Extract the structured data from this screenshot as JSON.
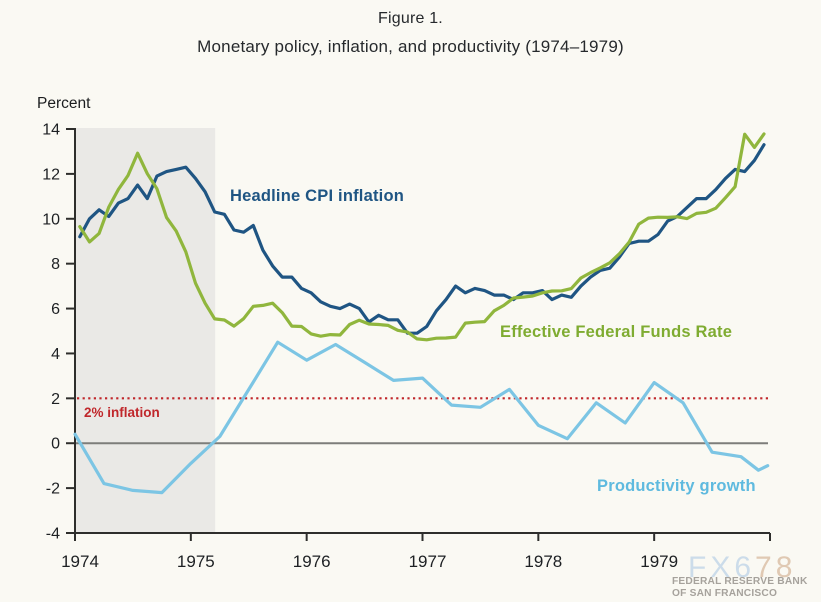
{
  "figure": {
    "title": "Figure 1.",
    "subtitle": "Monetary policy, inflation, and productivity (1974–1979)",
    "y_axis_unit_label": "Percent"
  },
  "annotations": {
    "inflation_target_label": "2% inflation"
  },
  "watermark": {
    "brand_part1": "FX6",
    "brand_part2": "78",
    "org_line1": "FEDERAL RESERVE BANK",
    "org_line2": "OF SAN FRANCISCO"
  },
  "colors": {
    "cpi_line": "#1f5583",
    "ffr_line": "#90b63d",
    "productivity_line": "#7cc5e4",
    "reference_red": "#c0272b",
    "axis": "#2e2e2c",
    "zero_line": "#7d7d7a",
    "recession_band": "#eae9e6",
    "background": "#faf9f3"
  },
  "chart_data": {
    "type": "line",
    "title": "Figure 1.",
    "subtitle": "Monetary policy, inflation, and productivity (1974–1979)",
    "xlabel": "",
    "ylabel": "Percent",
    "xlim": [
      1974,
      1980
    ],
    "ylim": [
      -4,
      14
    ],
    "x_ticks": [
      1974,
      1975,
      1976,
      1977,
      1978,
      1979
    ],
    "y_ticks": [
      14,
      12,
      10,
      8,
      6,
      4,
      2,
      0,
      -2,
      -4
    ],
    "grid": false,
    "legend_position": "inline-labels",
    "recession_band": {
      "start": 1974.0,
      "end": 1975.21
    },
    "zero_line": true,
    "reference_line": {
      "value": 2,
      "label": "2% inflation",
      "style": "dotted",
      "color": "#c0272b"
    },
    "series": [
      {
        "id": "cpi",
        "name": "Headline CPI inflation",
        "color": "#1f5583",
        "label_color": "#1f5583",
        "frequency": "monthly",
        "start": "1974-01",
        "values": [
          9.2,
          10.0,
          10.4,
          10.1,
          10.7,
          10.9,
          11.5,
          10.9,
          11.9,
          12.1,
          12.2,
          12.3,
          11.8,
          11.2,
          10.3,
          10.2,
          9.5,
          9.4,
          9.7,
          8.6,
          7.9,
          7.4,
          7.4,
          6.9,
          6.7,
          6.3,
          6.1,
          6.0,
          6.2,
          6.0,
          5.4,
          5.7,
          5.5,
          5.5,
          4.9,
          4.9,
          5.2,
          5.9,
          6.4,
          7.0,
          6.7,
          6.9,
          6.8,
          6.6,
          6.6,
          6.4,
          6.7,
          6.7,
          6.8,
          6.4,
          6.6,
          6.5,
          7.0,
          7.4,
          7.7,
          7.8,
          8.3,
          8.9,
          9.0,
          9.0,
          9.3,
          9.9,
          10.1,
          10.5,
          10.9,
          10.9,
          11.3,
          11.8,
          12.2,
          12.1,
          12.6,
          13.3
        ]
      },
      {
        "id": "ffr",
        "name": "Effective Federal Funds Rate",
        "color": "#90b63d",
        "label_color": "#7fac31",
        "frequency": "monthly",
        "start": "1974-01",
        "values": [
          9.65,
          8.97,
          9.35,
          10.51,
          11.31,
          11.93,
          12.92,
          12.01,
          11.34,
          10.06,
          9.45,
          8.53,
          7.13,
          6.24,
          5.54,
          5.49,
          5.22,
          5.55,
          6.1,
          6.14,
          6.24,
          5.82,
          5.22,
          5.2,
          4.87,
          4.77,
          4.84,
          4.82,
          5.29,
          5.48,
          5.31,
          5.29,
          5.25,
          5.03,
          4.95,
          4.65,
          4.61,
          4.68,
          4.69,
          4.73,
          5.35,
          5.39,
          5.42,
          5.9,
          6.14,
          6.47,
          6.51,
          6.56,
          6.7,
          6.78,
          6.79,
          6.89,
          7.36,
          7.6,
          7.81,
          8.04,
          8.45,
          8.96,
          9.76,
          10.03,
          10.07,
          10.06,
          10.09,
          10.01,
          10.24,
          10.29,
          10.47,
          10.94,
          11.43,
          13.77,
          13.18,
          13.78
        ]
      },
      {
        "id": "productivity",
        "name": "Productivity growth",
        "color": "#7cc5e4",
        "label_color": "#5fbadf",
        "frequency": "quarterly",
        "points": [
          [
            1974.0,
            0.4
          ],
          [
            1974.25,
            -1.8
          ],
          [
            1974.5,
            -2.1
          ],
          [
            1974.75,
            -2.2
          ],
          [
            1975.0,
            -0.9
          ],
          [
            1975.25,
            0.3
          ],
          [
            1975.5,
            2.4
          ],
          [
            1975.75,
            4.5
          ],
          [
            1976.0,
            3.7
          ],
          [
            1976.25,
            4.4
          ],
          [
            1976.5,
            3.6
          ],
          [
            1976.75,
            2.8
          ],
          [
            1977.0,
            2.9
          ],
          [
            1977.25,
            1.7
          ],
          [
            1977.5,
            1.6
          ],
          [
            1977.75,
            2.4
          ],
          [
            1978.0,
            0.8
          ],
          [
            1978.25,
            0.2
          ],
          [
            1978.5,
            1.8
          ],
          [
            1978.75,
            0.9
          ],
          [
            1979.0,
            2.7
          ],
          [
            1979.25,
            1.8
          ],
          [
            1979.5,
            -0.4
          ],
          [
            1979.75,
            -0.6
          ],
          [
            1979.9,
            -1.2
          ],
          [
            1979.98,
            -1.0
          ]
        ]
      }
    ]
  }
}
